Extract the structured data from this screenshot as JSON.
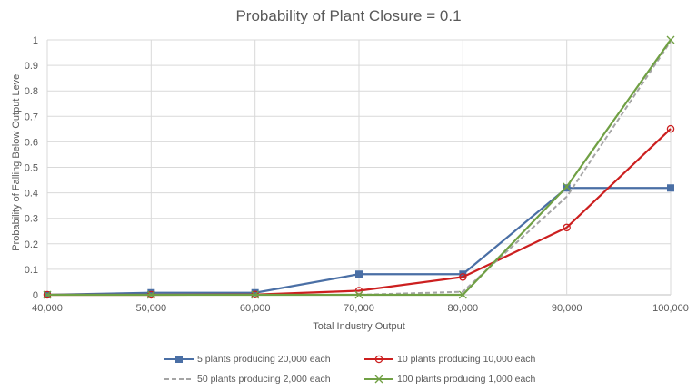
{
  "chart_data": {
    "type": "line",
    "title": "Probability of Plant Closure = 0.1",
    "xlabel": "Total Industry Output",
    "ylabel": "Probability of Falling Below Output Level",
    "x": [
      40000,
      50000,
      60000,
      70000,
      80000,
      90000,
      100000
    ],
    "x_tick_labels": [
      "40,000",
      "50,000",
      "60,000",
      "70,000",
      "80,000",
      "90,000",
      "100,000"
    ],
    "y_tick_labels": [
      "0",
      "0.1",
      "0.2",
      "0.3",
      "0.4",
      "0.5",
      "0.6",
      "0.7",
      "0.8",
      "0.9",
      "1"
    ],
    "ylim": [
      0,
      1
    ],
    "grid": true,
    "legend_position": "bottom",
    "series": [
      {
        "name": "5 plants producing 20,000 each",
        "color": "#4a6fa5",
        "marker": "square",
        "dash": false,
        "values": [
          0,
          0.008,
          0.008,
          0.081,
          0.081,
          0.419,
          0.419
        ]
      },
      {
        "name": "10 plants producing 10,000 each",
        "color": "#cc1f1f",
        "marker": "circle",
        "dash": false,
        "values": [
          0,
          0,
          0.001,
          0.016,
          0.07,
          0.264,
          0.651
        ]
      },
      {
        "name": "50 plants producing 2,000 each",
        "color": "#a5a5a5",
        "marker": "none",
        "dash": true,
        "values": [
          0,
          0,
          0,
          0,
          0.012,
          0.385,
          0.994
        ]
      },
      {
        "name": "100 plants producing 1,000 each",
        "color": "#70a044",
        "marker": "x",
        "dash": false,
        "values": [
          0,
          0,
          0,
          0,
          0,
          0.424,
          1.0
        ]
      }
    ]
  }
}
